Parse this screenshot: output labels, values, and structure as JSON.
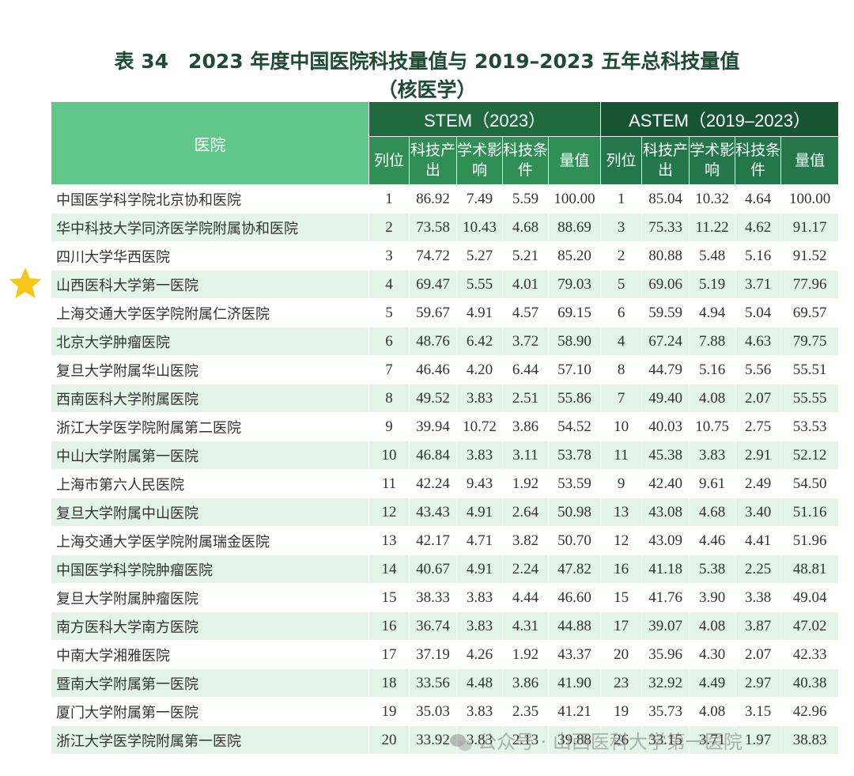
{
  "title": {
    "line1": "表 34　2023 年度中国医院科技量值与 2019–2023 五年总科技量值",
    "line2": "（核医学）"
  },
  "header": {
    "hospital": "医院",
    "stem_group": "STEM（2023）",
    "astem_group": "ASTEM（2019–2023）",
    "cols": [
      "列位",
      "科技产出",
      "学术影响",
      "科技条件",
      "量值"
    ]
  },
  "highlight": {
    "icon": "star-icon",
    "row": 4,
    "color": "#f5c518"
  },
  "rows": [
    {
      "name": "中国医学科学院北京协和医院",
      "s": [
        "1",
        "86.92",
        "7.49",
        "5.59",
        "100.00"
      ],
      "a": [
        "1",
        "85.04",
        "10.32",
        "4.64",
        "100.00"
      ]
    },
    {
      "name": "华中科技大学同济医学院附属协和医院",
      "s": [
        "2",
        "73.58",
        "10.43",
        "4.68",
        "88.69"
      ],
      "a": [
        "3",
        "75.33",
        "11.22",
        "4.62",
        "91.17"
      ]
    },
    {
      "name": "四川大学华西医院",
      "s": [
        "3",
        "74.72",
        "5.27",
        "5.21",
        "85.20"
      ],
      "a": [
        "2",
        "80.88",
        "5.48",
        "5.16",
        "91.52"
      ]
    },
    {
      "name": "山西医科大学第一医院",
      "s": [
        "4",
        "69.47",
        "5.55",
        "4.01",
        "79.03"
      ],
      "a": [
        "5",
        "69.06",
        "5.19",
        "3.71",
        "77.96"
      ]
    },
    {
      "name": "上海交通大学医学院附属仁济医院",
      "s": [
        "5",
        "59.67",
        "4.91",
        "4.57",
        "69.15"
      ],
      "a": [
        "6",
        "59.59",
        "4.94",
        "5.04",
        "69.57"
      ]
    },
    {
      "name": "北京大学肿瘤医院",
      "s": [
        "6",
        "48.76",
        "6.42",
        "3.72",
        "58.90"
      ],
      "a": [
        "4",
        "67.24",
        "7.88",
        "4.63",
        "79.75"
      ]
    },
    {
      "name": "复旦大学附属华山医院",
      "s": [
        "7",
        "46.46",
        "4.20",
        "6.44",
        "57.10"
      ],
      "a": [
        "8",
        "44.79",
        "5.16",
        "5.56",
        "55.51"
      ]
    },
    {
      "name": "西南医科大学附属医院",
      "s": [
        "8",
        "49.52",
        "3.83",
        "2.51",
        "55.86"
      ],
      "a": [
        "7",
        "49.40",
        "4.08",
        "2.07",
        "55.55"
      ]
    },
    {
      "name": "浙江大学医学院附属第二医院",
      "s": [
        "9",
        "39.94",
        "10.72",
        "3.86",
        "54.52"
      ],
      "a": [
        "10",
        "40.03",
        "10.75",
        "2.75",
        "53.53"
      ]
    },
    {
      "name": "中山大学附属第一医院",
      "s": [
        "10",
        "46.84",
        "3.83",
        "3.11",
        "53.78"
      ],
      "a": [
        "11",
        "45.38",
        "3.83",
        "2.91",
        "52.12"
      ]
    },
    {
      "name": "上海市第六人民医院",
      "s": [
        "11",
        "42.24",
        "9.43",
        "1.92",
        "53.59"
      ],
      "a": [
        "9",
        "42.40",
        "9.61",
        "2.49",
        "54.50"
      ]
    },
    {
      "name": "复旦大学附属中山医院",
      "s": [
        "12",
        "43.43",
        "4.91",
        "2.64",
        "50.98"
      ],
      "a": [
        "13",
        "43.08",
        "4.68",
        "3.40",
        "51.16"
      ]
    },
    {
      "name": "上海交通大学医学院附属瑞金医院",
      "s": [
        "13",
        "42.17",
        "4.71",
        "3.82",
        "50.70"
      ],
      "a": [
        "12",
        "43.09",
        "4.46",
        "4.41",
        "51.96"
      ]
    },
    {
      "name": "中国医学科学院肿瘤医院",
      "s": [
        "14",
        "40.67",
        "4.91",
        "2.24",
        "47.82"
      ],
      "a": [
        "16",
        "41.18",
        "5.38",
        "2.25",
        "48.81"
      ]
    },
    {
      "name": "复旦大学附属肿瘤医院",
      "s": [
        "15",
        "38.33",
        "3.83",
        "4.44",
        "46.60"
      ],
      "a": [
        "15",
        "41.76",
        "3.90",
        "3.38",
        "49.04"
      ]
    },
    {
      "name": "南方医科大学南方医院",
      "s": [
        "16",
        "36.74",
        "3.83",
        "4.31",
        "44.88"
      ],
      "a": [
        "17",
        "39.07",
        "4.08",
        "3.87",
        "47.02"
      ]
    },
    {
      "name": "中南大学湘雅医院",
      "s": [
        "17",
        "37.19",
        "4.26",
        "1.92",
        "43.37"
      ],
      "a": [
        "20",
        "35.96",
        "4.30",
        "2.07",
        "42.33"
      ]
    },
    {
      "name": "暨南大学附属第一医院",
      "s": [
        "18",
        "33.56",
        "4.48",
        "3.86",
        "41.90"
      ],
      "a": [
        "23",
        "32.92",
        "4.49",
        "2.97",
        "40.38"
      ]
    },
    {
      "name": "厦门大学附属第一医院",
      "s": [
        "19",
        "35.03",
        "3.83",
        "2.35",
        "41.21"
      ],
      "a": [
        "19",
        "35.73",
        "4.08",
        "3.15",
        "42.96"
      ]
    },
    {
      "name": "浙江大学医学院附属第一医院",
      "s": [
        "20",
        "33.92",
        "3.83",
        "2.13",
        "39.88"
      ],
      "a": [
        "26",
        "33.15",
        "3.71",
        "1.97",
        "38.83"
      ]
    }
  ],
  "watermark": {
    "icon": "wechat-icon",
    "text": "公众号 · 山西医科大学第一医院"
  }
}
